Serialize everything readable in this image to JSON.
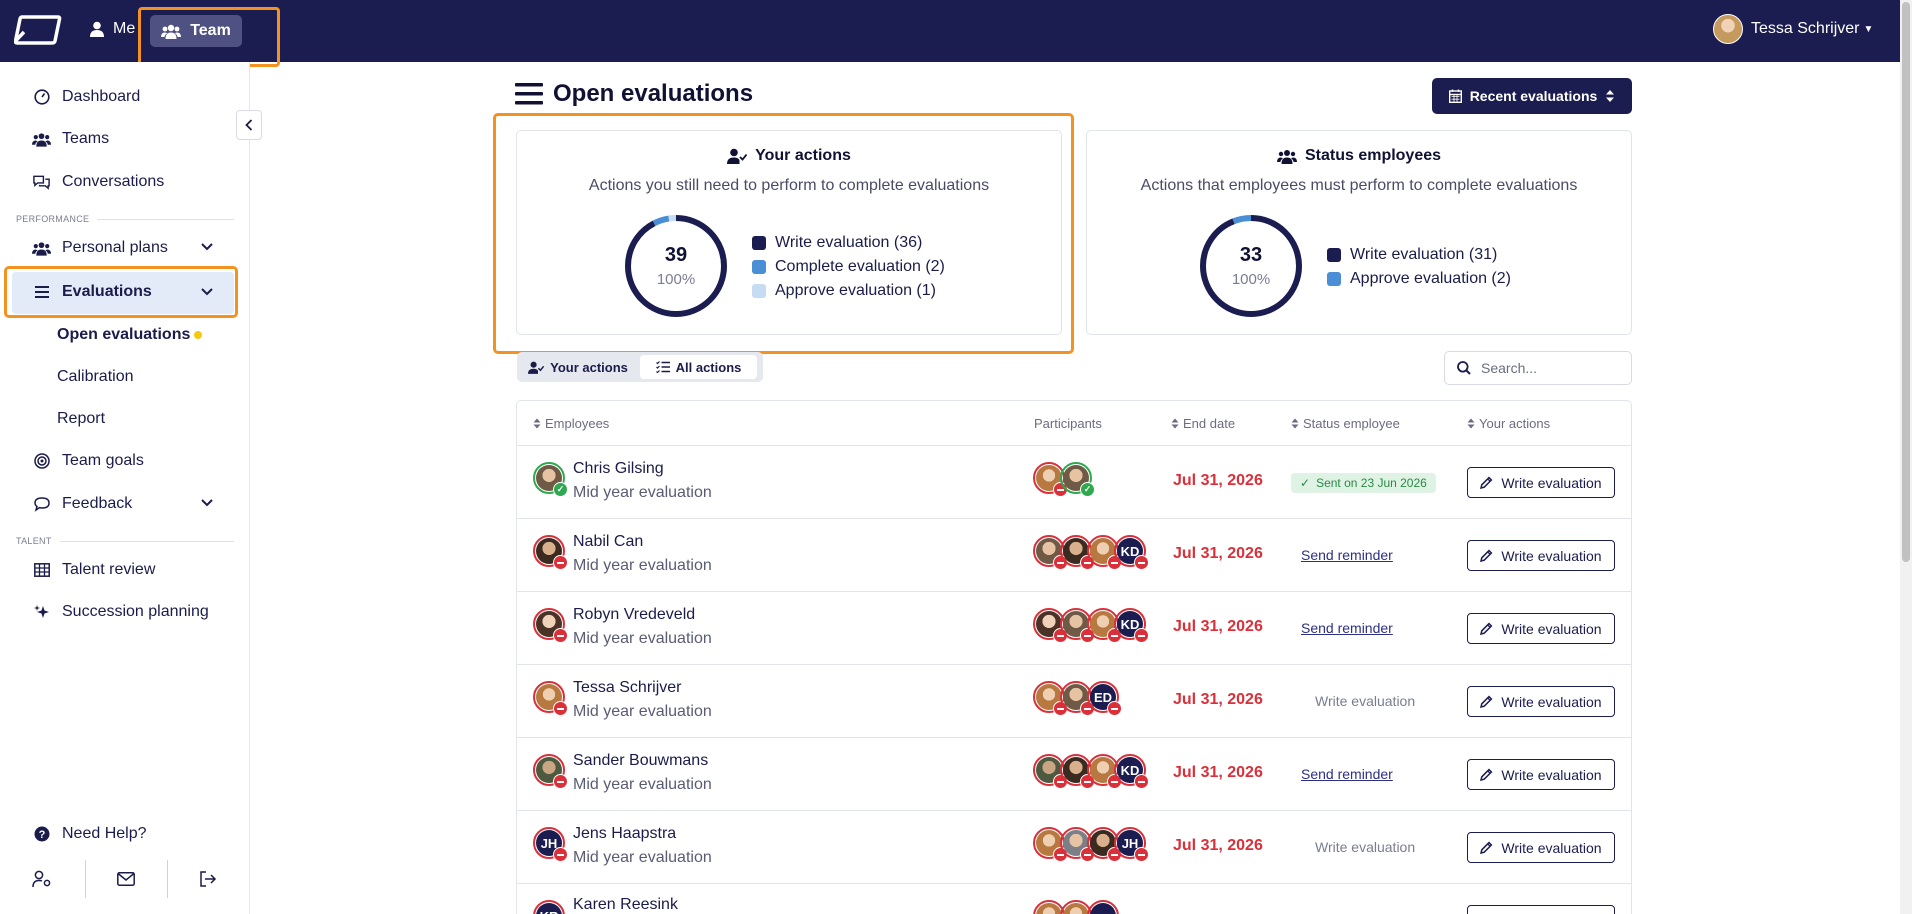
{
  "topbar": {
    "nav_me": "Me",
    "nav_team": "Team",
    "user_name": "Tessa Schrijver",
    "brand_color": "#1b1c4f",
    "highlight_color": "#f39220"
  },
  "sidebar": {
    "dashboard": "Dashboard",
    "teams": "Teams",
    "conversations": "Conversations",
    "section_performance": "PERFORMANCE",
    "personal_plans": "Personal plans",
    "evaluations": "Evaluations",
    "open_evaluations": "Open evaluations",
    "calibration": "Calibration",
    "report": "Report",
    "team_goals": "Team goals",
    "feedback": "Feedback",
    "section_talent": "TALENT",
    "talent_review": "Talent review",
    "succession_planning": "Succession planning",
    "need_help": "Need Help?"
  },
  "main": {
    "title": "Open evaluations",
    "recent_button": "Recent evaluations",
    "your_actions_card": {
      "title": "Your actions",
      "subtitle": "Actions you still need to perform to complete evaluations",
      "total": "39",
      "percent": "100%",
      "segments": [
        {
          "label": "Write evaluation (36)",
          "value": 36,
          "color": "#1b1c4f"
        },
        {
          "label": "Complete evaluation (2)",
          "value": 2,
          "color": "#4a8fd6"
        },
        {
          "label": "Approve evaluation (1)",
          "value": 1,
          "color": "#c5dcf2"
        }
      ]
    },
    "status_card": {
      "title": "Status employees",
      "subtitle": "Actions that employees must perform to complete evaluations",
      "total": "33",
      "percent": "100%",
      "segments": [
        {
          "label": "Write evaluation (31)",
          "value": 31,
          "color": "#1b1c4f"
        },
        {
          "label": "Approve evaluation (2)",
          "value": 2,
          "color": "#4a8fd6"
        }
      ]
    },
    "toggle": {
      "your_actions": "Your actions",
      "all_actions": "All actions"
    },
    "search_placeholder": "Search..."
  },
  "table": {
    "headers": {
      "employees": "Employees",
      "participants": "Participants",
      "end_date": "End date",
      "status_employee": "Status employee",
      "your_actions": "Your actions"
    },
    "rows": [
      {
        "name": "Chris Gilsing",
        "type": "Mid year evaluation",
        "end_date": "Jul 31, 2026",
        "status_kind": "pill",
        "status": "Sent on 23 Jun 2026",
        "action": "Write evaluation"
      },
      {
        "name": "Nabil Can",
        "type": "Mid year evaluation",
        "end_date": "Jul 31, 2026",
        "status_kind": "link",
        "status": "Send reminder",
        "action": "Write evaluation"
      },
      {
        "name": "Robyn Vredeveld",
        "type": "Mid year evaluation",
        "end_date": "Jul 31, 2026",
        "status_kind": "link",
        "status": "Send reminder",
        "action": "Write evaluation"
      },
      {
        "name": "Tessa Schrijver",
        "type": "Mid year evaluation",
        "end_date": "Jul 31, 2026",
        "status_kind": "muted",
        "status": "Write evaluation",
        "action": "Write evaluation"
      },
      {
        "name": "Sander Bouwmans",
        "type": "Mid year evaluation",
        "end_date": "Jul 31, 2026",
        "status_kind": "link",
        "status": "Send reminder",
        "action": "Write evaluation"
      },
      {
        "name": "Jens Haapstra",
        "type": "Mid year evaluation",
        "end_date": "Jul 31, 2026",
        "status_kind": "muted",
        "status": "Write evaluation",
        "action": "Write evaluation"
      },
      {
        "name": "Karen Reesink",
        "type": "",
        "end_date": "",
        "status_kind": "none",
        "status": "",
        "action": ""
      }
    ],
    "participant_initials": {
      "kd": "KD",
      "ed": "ED",
      "jh": "JH",
      "jh_short": "JH",
      "kr": "KR"
    }
  }
}
